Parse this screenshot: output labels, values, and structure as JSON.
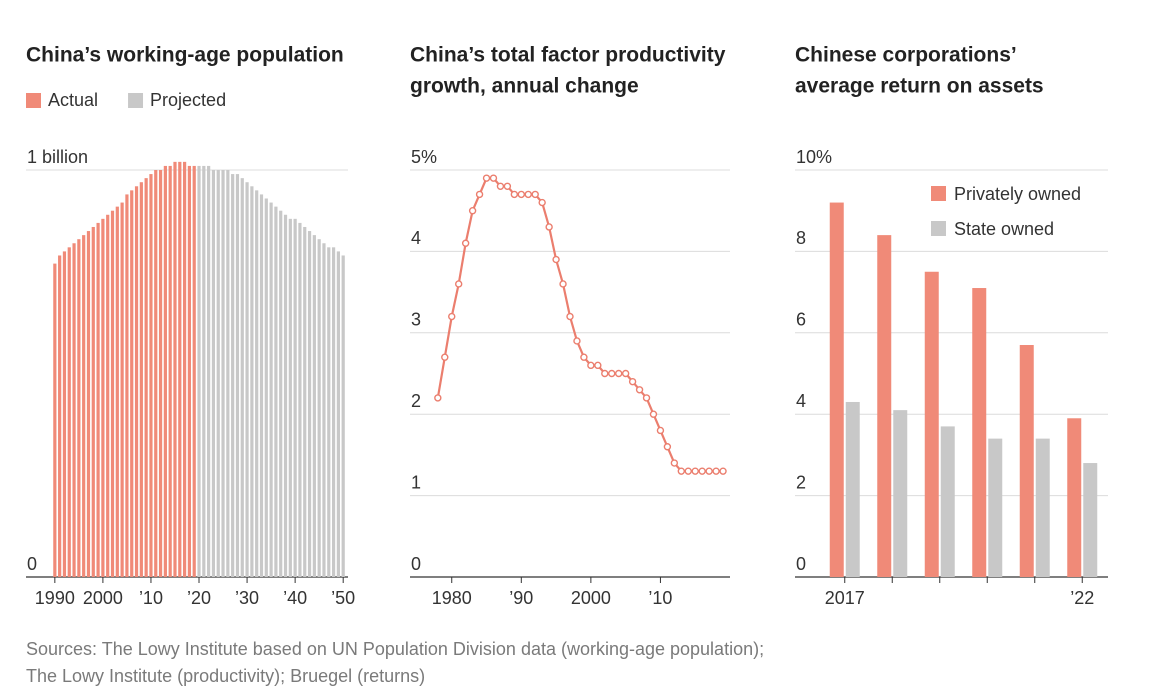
{
  "chart_data": [
    {
      "type": "bar",
      "title": [
        "China’s working-age population"
      ],
      "x": [
        1990,
        1991,
        1992,
        1993,
        1994,
        1995,
        1996,
        1997,
        1998,
        1999,
        2000,
        2001,
        2002,
        2003,
        2004,
        2005,
        2006,
        2007,
        2008,
        2009,
        2010,
        2011,
        2012,
        2013,
        2014,
        2015,
        2016,
        2017,
        2018,
        2019,
        2020,
        2021,
        2022,
        2023,
        2024,
        2025,
        2026,
        2027,
        2028,
        2029,
        2030,
        2031,
        2032,
        2033,
        2034,
        2035,
        2036,
        2037,
        2038,
        2039,
        2040,
        2041,
        2042,
        2043,
        2044,
        2045,
        2046,
        2047,
        2048,
        2049,
        2050
      ],
      "series": [
        {
          "name": "Actual",
          "color": "#f08a78",
          "values": [
            0.77,
            0.79,
            0.8,
            0.81,
            0.82,
            0.83,
            0.84,
            0.85,
            0.86,
            0.87,
            0.88,
            0.89,
            0.9,
            0.91,
            0.92,
            0.94,
            0.95,
            0.96,
            0.97,
            0.98,
            0.99,
            1.0,
            1.0,
            1.01,
            1.01,
            1.02,
            1.02,
            1.02,
            1.01,
            1.01,
            null,
            null,
            null,
            null,
            null,
            null,
            null,
            null,
            null,
            null,
            null,
            null,
            null,
            null,
            null,
            null,
            null,
            null,
            null,
            null,
            null,
            null,
            null,
            null,
            null,
            null,
            null,
            null,
            null,
            null,
            null
          ]
        },
        {
          "name": "Projected",
          "color": "#c8c8c8",
          "values": [
            null,
            null,
            null,
            null,
            null,
            null,
            null,
            null,
            null,
            null,
            null,
            null,
            null,
            null,
            null,
            null,
            null,
            null,
            null,
            null,
            null,
            null,
            null,
            null,
            null,
            null,
            null,
            null,
            null,
            null,
            1.01,
            1.01,
            1.01,
            1.0,
            1.0,
            1.0,
            1.0,
            0.99,
            0.99,
            0.98,
            0.97,
            0.96,
            0.95,
            0.94,
            0.93,
            0.92,
            0.91,
            0.9,
            0.89,
            0.88,
            0.88,
            0.87,
            0.86,
            0.85,
            0.84,
            0.83,
            0.82,
            0.81,
            0.81,
            0.8,
            0.79
          ]
        }
      ],
      "xlim": [
        1984,
        2051
      ],
      "xticks": [
        1990,
        2000,
        {
          "value": 2010,
          "label": "’10"
        },
        {
          "value": 2020,
          "label": "’20"
        },
        {
          "value": 2030,
          "label": "’30"
        },
        {
          "value": 2040,
          "label": "’40"
        },
        {
          "value": 2050,
          "label": "’50"
        }
      ],
      "ylim": [
        0,
        1
      ],
      "yticks": [
        0,
        {
          "value": 1,
          "label": "1 billion"
        }
      ],
      "grid": true,
      "legend": "below-title"
    },
    {
      "type": "line",
      "title": [
        "China’s total factor productivity",
        "growth, annual change"
      ],
      "x": [
        1978,
        1979,
        1980,
        1981,
        1982,
        1983,
        1984,
        1985,
        1986,
        1987,
        1988,
        1989,
        1990,
        1991,
        1992,
        1993,
        1994,
        1995,
        1996,
        1997,
        1998,
        1999,
        2000,
        2001,
        2002,
        2003,
        2004,
        2005,
        2006,
        2007,
        2008,
        2009,
        2010,
        2011,
        2012,
        2013,
        2014,
        2015,
        2016,
        2017,
        2018,
        2019
      ],
      "values": [
        2.2,
        2.7,
        3.2,
        3.6,
        4.1,
        4.5,
        4.7,
        4.9,
        4.9,
        4.8,
        4.8,
        4.7,
        4.7,
        4.7,
        4.7,
        4.6,
        4.3,
        3.9,
        3.6,
        3.2,
        2.9,
        2.7,
        2.6,
        2.6,
        2.5,
        2.5,
        2.5,
        2.5,
        2.4,
        2.3,
        2.2,
        2.0,
        1.8,
        1.6,
        1.4,
        1.3,
        1.3,
        1.3,
        1.3,
        1.3,
        1.3,
        1.3
      ],
      "color": "#eb7e6e",
      "xlim": [
        1974,
        2020
      ],
      "xticks": [
        1980,
        {
          "value": 1990,
          "label": "’90"
        },
        2000,
        {
          "value": 2010,
          "label": "’10"
        }
      ],
      "ylim": [
        0,
        5
      ],
      "yticks": [
        0,
        1,
        2,
        3,
        4,
        {
          "value": 5,
          "label": "5%"
        }
      ],
      "grid": true
    },
    {
      "type": "bar",
      "title": [
        "Chinese corporations’",
        "average return on assets"
      ],
      "categories": [
        "2017",
        null,
        null,
        null,
        null,
        "’22"
      ],
      "series": [
        {
          "name": "Privately owned",
          "color": "#f08a78",
          "values": [
            9.2,
            8.4,
            7.5,
            7.1,
            5.7,
            3.9
          ]
        },
        {
          "name": "State owned",
          "color": "#c8c8c8",
          "values": [
            4.3,
            4.1,
            3.7,
            3.4,
            3.4,
            2.8
          ]
        }
      ],
      "ylim": [
        0,
        10
      ],
      "yticks": [
        0,
        2,
        4,
        6,
        8,
        {
          "value": 10,
          "label": "10%"
        }
      ],
      "grid": true,
      "legend": "upper-right"
    }
  ],
  "sources": [
    "Sources: The Lowy Institute based on UN Population Division data (working-age population);",
    "The Lowy Institute (productivity); Bruegel (returns)"
  ]
}
